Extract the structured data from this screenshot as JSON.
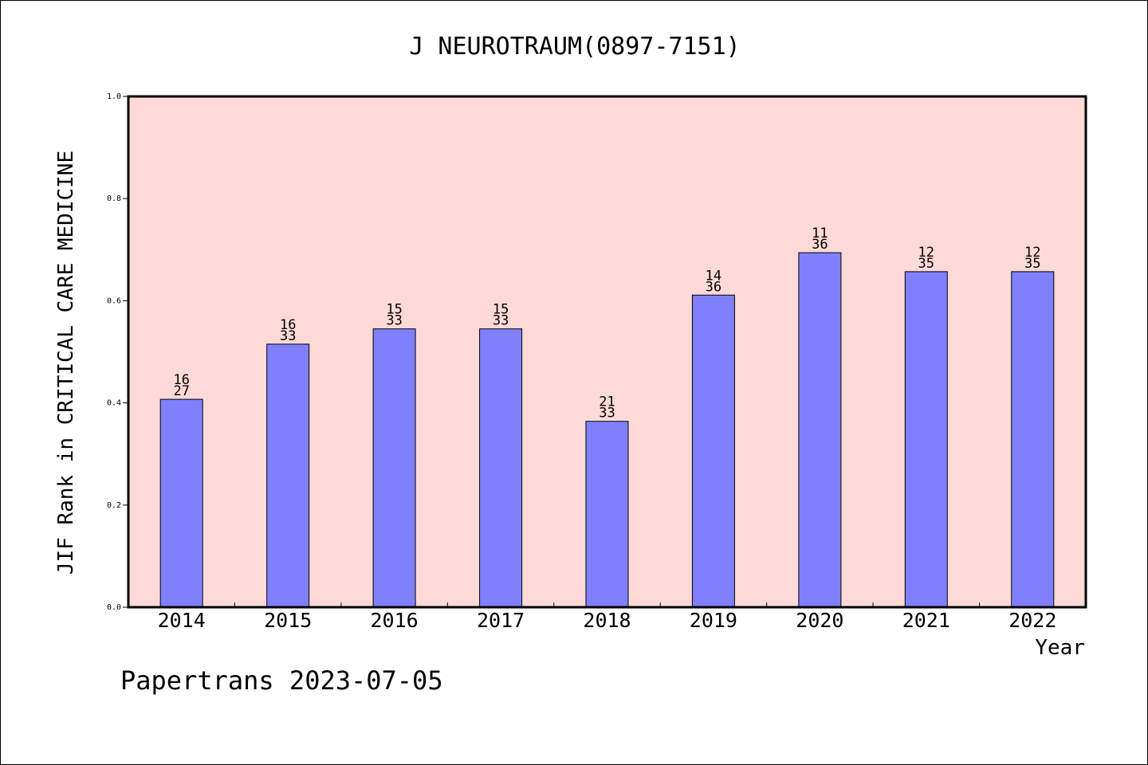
{
  "chart_data": {
    "type": "bar",
    "title": "J NEUROTRAUM(0897-7151)",
    "xlabel": "Year",
    "ylabel": "JIF Rank in CRITICAL CARE MEDICINE",
    "ylim": [
      0,
      1.0
    ],
    "yticks": [
      "0.0",
      "0.2",
      "0.4",
      "0.6",
      "0.8",
      "1.0"
    ],
    "categories": [
      "2014",
      "2015",
      "2016",
      "2017",
      "2018",
      "2019",
      "2020",
      "2021",
      "2022"
    ],
    "values": [
      0.407,
      0.515,
      0.545,
      0.545,
      0.364,
      0.611,
      0.694,
      0.657,
      0.657
    ],
    "rank_labels": [
      {
        "rank": "16",
        "total": "27"
      },
      {
        "rank": "16",
        "total": "33"
      },
      {
        "rank": "15",
        "total": "33"
      },
      {
        "rank": "15",
        "total": "33"
      },
      {
        "rank": "21",
        "total": "33"
      },
      {
        "rank": "14",
        "total": "36"
      },
      {
        "rank": "11",
        "total": "36"
      },
      {
        "rank": "12",
        "total": "35"
      },
      {
        "rank": "12",
        "total": "35"
      }
    ],
    "grid": false,
    "colors": {
      "plot_background": "#fddad7",
      "bar_fill": "#8080ff",
      "bar_stroke": "#000000",
      "axis": "#000000"
    }
  },
  "footer": "Papertrans 2023-07-05"
}
